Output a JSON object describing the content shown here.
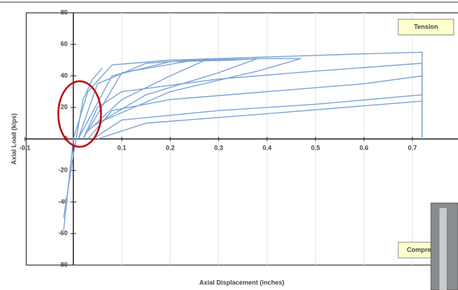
{
  "chart_data": {
    "type": "line",
    "x_label": "Axial Displacement (inches)",
    "y_label": "Axial Load (kips)",
    "annotations": [
      "Tension",
      "Compre"
    ],
    "xlim": [
      -0.1,
      0.8
    ],
    "ylim": [
      -80,
      80
    ],
    "xticks": [
      -0.1,
      0,
      0.1,
      0.2,
      0.3,
      0.4,
      0.5,
      0.6,
      0.7
    ],
    "yticks": [
      -80,
      -60,
      -40,
      -20,
      0,
      20,
      40,
      60,
      80
    ],
    "series": [
      {
        "color": "#7aa3d8",
        "x": [
          -0.02,
          0,
          0.03,
          0.08,
          0.2,
          0.4,
          0.6,
          0.72,
          0.72
        ],
        "values": [
          -58,
          0,
          30,
          47,
          50,
          52,
          54,
          55,
          1
        ]
      },
      {
        "color": "#7aa3d8",
        "x": [
          0.02,
          0.05,
          0.1,
          0.3,
          0.5,
          0.72,
          0.72
        ],
        "values": [
          0,
          20,
          30,
          38,
          43,
          48,
          1
        ]
      },
      {
        "color": "#7aa3d8",
        "x": [
          0.03,
          0.08,
          0.2,
          0.4,
          0.6,
          0.72
        ],
        "values": [
          0,
          18,
          25,
          30,
          35,
          40
        ]
      },
      {
        "color": "#7aa3d8",
        "x": [
          0.04,
          0.1,
          0.3,
          0.5,
          0.72
        ],
        "values": [
          0,
          12,
          18,
          22,
          28
        ]
      },
      {
        "color": "#7aa3d8",
        "x": [
          0.05,
          0.15,
          0.4,
          0.72
        ],
        "values": [
          0,
          10,
          16,
          24
        ]
      },
      {
        "color": "#7aa3d8",
        "x": [
          0.01,
          0.05,
          0.15,
          0.25,
          0.28,
          0.2,
          0.1,
          0.03
        ],
        "values": [
          0,
          35,
          48,
          50,
          51,
          40,
          25,
          5
        ]
      },
      {
        "color": "#7aa3d8",
        "x": [
          0.01,
          0.08,
          0.2,
          0.33,
          0.38,
          0.3,
          0.15,
          0.04
        ],
        "values": [
          0,
          40,
          49,
          50,
          51,
          42,
          28,
          8
        ]
      },
      {
        "color": "#7aa3d8",
        "x": [
          0.02,
          0.1,
          0.25,
          0.4,
          0.47,
          0.38,
          0.2,
          0.05
        ],
        "values": [
          0,
          42,
          50,
          51,
          51,
          43,
          30,
          10
        ]
      },
      {
        "color": "#7aa3d8",
        "x": [
          -0.02,
          0,
          0.02,
          0.04,
          0.06
        ],
        "values": [
          -50,
          -10,
          25,
          38,
          45
        ]
      }
    ]
  }
}
